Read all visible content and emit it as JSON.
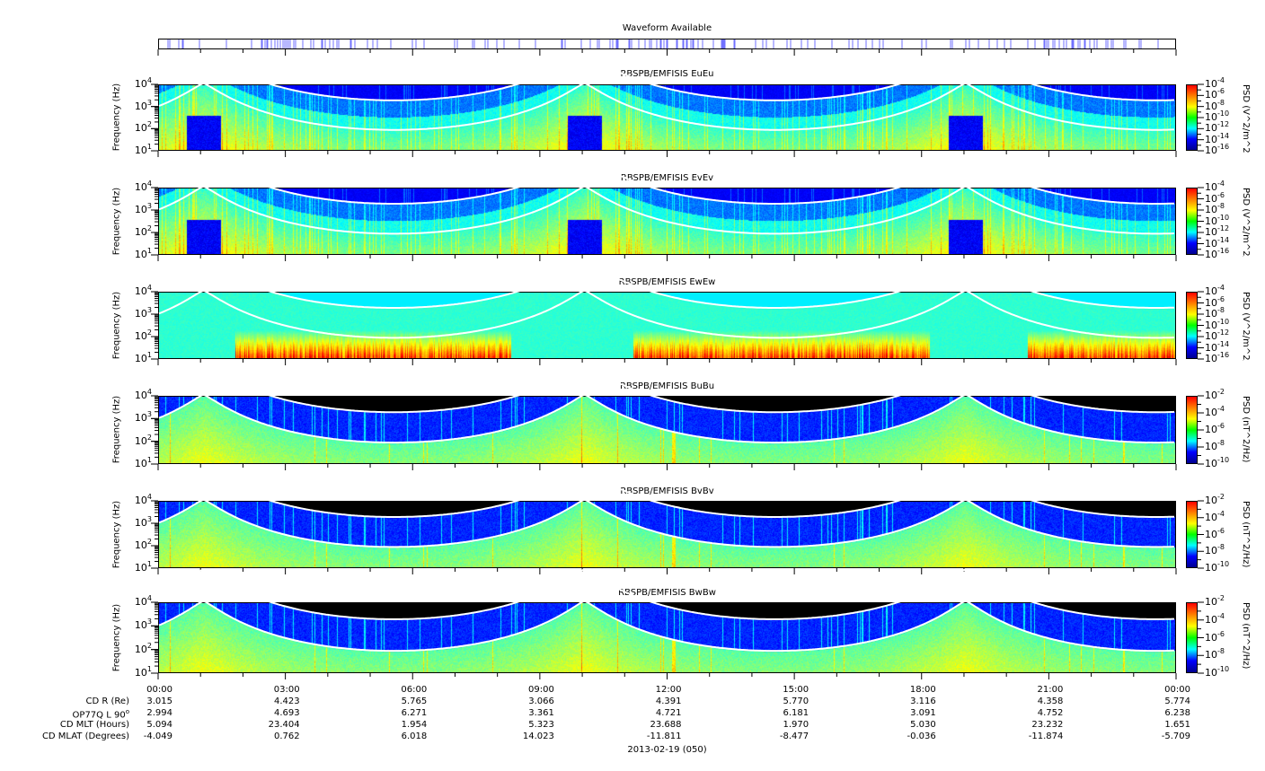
{
  "chart_data": {
    "type": "heatmap",
    "date_label": "2013-02-19 (050)",
    "waveform": {
      "title": "Waveform Available",
      "color": "#7070ff"
    },
    "x_ticks": [
      "00:00",
      "03:00",
      "06:00",
      "09:00",
      "12:00",
      "15:00",
      "18:00",
      "21:00",
      "00:00"
    ],
    "ylabel": "Frequency (Hz)",
    "ylim_hz": [
      10,
      10000
    ],
    "y_ticks": [
      {
        "b": "10",
        "e": "4"
      },
      {
        "b": "10",
        "e": "3"
      },
      {
        "b": "10",
        "e": "2"
      },
      {
        "b": "10",
        "e": "1"
      }
    ],
    "panels": [
      {
        "title": "RBSPB/EMFISIS  EuEu",
        "kind": "E",
        "cbar_label": "PSD (V^2/m^2/Hz)",
        "cbar_ticks": [
          "-4",
          "-6",
          "-8",
          "-10",
          "-12",
          "-14",
          "-16"
        ],
        "zlim": [
          "1e-16",
          "1e-4"
        ]
      },
      {
        "title": "RBSPB/EMFISIS  EvEv",
        "kind": "E",
        "cbar_label": "PSD (V^2/m^2/Hz)",
        "cbar_ticks": [
          "-4",
          "-6",
          "-8",
          "-10",
          "-12",
          "-14",
          "-16"
        ],
        "zlim": [
          "1e-16",
          "1e-4"
        ]
      },
      {
        "title": "RBSPB/EMFISIS  EwEw",
        "kind": "Ew",
        "cbar_label": "PSD (V^2/m^2/Hz)",
        "cbar_ticks": [
          "-4",
          "-6",
          "-8",
          "-10",
          "-12",
          "-14",
          "-16"
        ],
        "zlim": [
          "1e-16",
          "1e-4"
        ]
      },
      {
        "title": "RBSPB/EMFISIS  BuBu",
        "kind": "B",
        "cbar_label": "PSD (nT^2/Hz)",
        "cbar_ticks": [
          "-2",
          "-4",
          "-6",
          "-8",
          "-10"
        ],
        "zlim": [
          "1e-10",
          "1e-2"
        ]
      },
      {
        "title": "RBSPB/EMFISIS  BvBv",
        "kind": "B",
        "cbar_label": "PSD (nT^2/Hz)",
        "cbar_ticks": [
          "-2",
          "-4",
          "-6",
          "-8",
          "-10"
        ],
        "zlim": [
          "1e-10",
          "1e-2"
        ]
      },
      {
        "title": "RBSPB/EMFISIS  BwBw",
        "kind": "B",
        "cbar_label": "PSD (nT^2/Hz)",
        "cbar_ticks": [
          "-2",
          "-4",
          "-6",
          "-8",
          "-10"
        ],
        "zlim": [
          "1e-10",
          "1e-2"
        ]
      }
    ],
    "table": {
      "rows": [
        {
          "label": "CD R (Re)",
          "values": [
            "3.015",
            "4.423",
            "5.765",
            "3.066",
            "4.391",
            "5.770",
            "3.116",
            "4.358",
            "5.774"
          ]
        },
        {
          "label": "OP77Q L 90",
          "sup": "o",
          "values": [
            "2.994",
            "4.693",
            "6.271",
            "3.361",
            "4.721",
            "6.181",
            "3.091",
            "4.752",
            "6.238"
          ]
        },
        {
          "label": "CD MLT (Hours)",
          "values": [
            "5.094",
            "23.404",
            "1.954",
            "5.323",
            "23.688",
            "1.970",
            "5.030",
            "23.232",
            "1.651"
          ]
        },
        {
          "label": "CD MLAT (Degrees)",
          "values": [
            "-4.049",
            "0.762",
            "6.018",
            "14.023",
            "-11.811",
            "-8.477",
            "-0.036",
            "-11.874",
            "-5.709"
          ]
        }
      ]
    }
  }
}
